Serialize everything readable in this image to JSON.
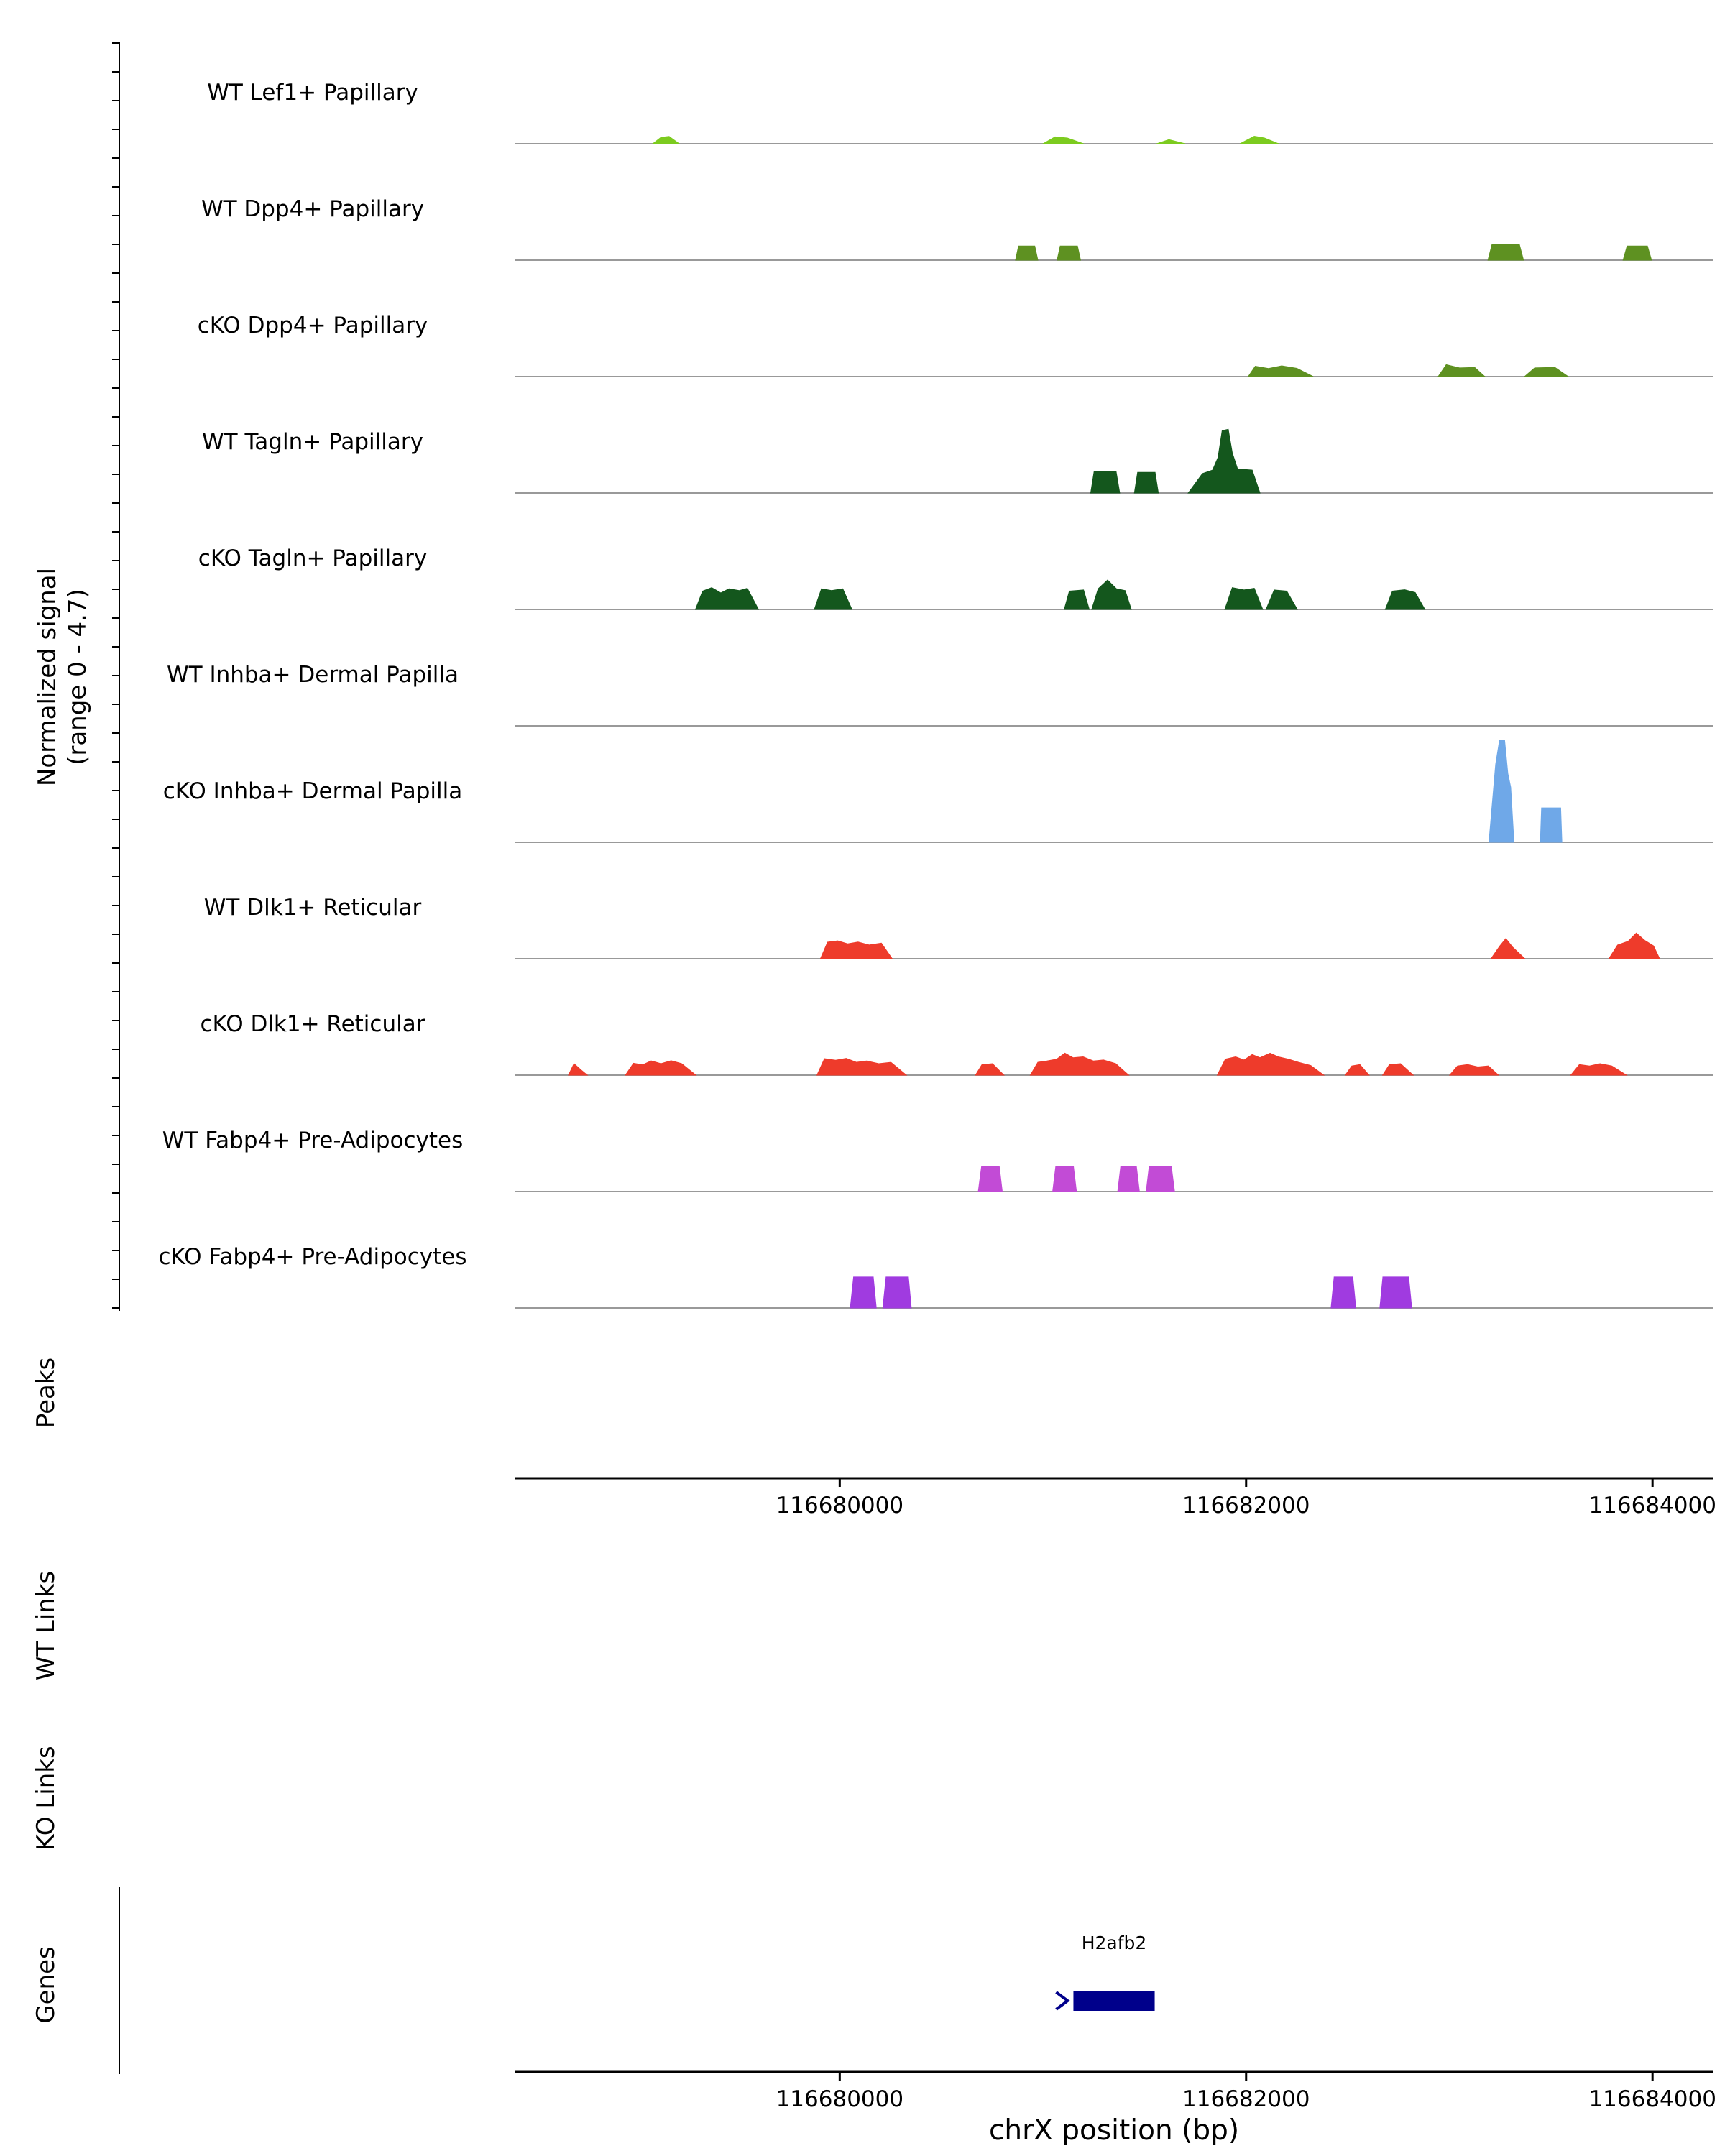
{
  "chart_data": {
    "type": "area",
    "description": "Genome browser coverage tracks (normalized ATAC signal) around gene H2afb2 on chrX",
    "xlabel": "chrX position (bp)",
    "x_domain": [
      116678400,
      116684300
    ],
    "x_ticks": [
      116680000,
      116682000,
      116684000
    ],
    "x_tick_labels": [
      "116680000",
      "116682000",
      "116684000"
    ],
    "y_range": [
      0,
      4.7
    ],
    "signal_axis_label_line1": "Normalized signal",
    "signal_axis_label_line2": "(range 0 - 4.7)",
    "sections": {
      "peaks": "Peaks",
      "wt_links": "WT Links",
      "ko_links": "KO Links",
      "genes": "Genes"
    },
    "grid": "off",
    "legend": "none",
    "tracks": [
      {
        "label": "WT Lef1+ Papillary",
        "color": "#7CCB1F",
        "segments": [
          [
            [
              116679080,
              0
            ],
            [
              116679120,
              0.28
            ],
            [
              116679160,
              0.32
            ],
            [
              116679210,
              0
            ]
          ],
          [
            [
              116681000,
              0
            ],
            [
              116681060,
              0.3
            ],
            [
              116681120,
              0.25
            ],
            [
              116681200,
              0
            ]
          ],
          [
            [
              116681560,
              0
            ],
            [
              116681620,
              0.18
            ],
            [
              116681700,
              0
            ]
          ],
          [
            [
              116681970,
              0
            ],
            [
              116682040,
              0.33
            ],
            [
              116682090,
              0.25
            ],
            [
              116682160,
              0
            ]
          ]
        ]
      },
      {
        "label": "WT Dpp4+ Papillary",
        "color": "#5E9121",
        "segments": [
          [
            [
              116680865,
              0
            ],
            [
              116680880,
              0.62
            ],
            [
              116680960,
              0.62
            ],
            [
              116680975,
              0
            ]
          ],
          [
            [
              116681070,
              0
            ],
            [
              116681085,
              0.62
            ],
            [
              116681170,
              0.62
            ],
            [
              116681185,
              0
            ]
          ],
          [
            [
              116683190,
              0
            ],
            [
              116683210,
              0.68
            ],
            [
              116683345,
              0.68
            ],
            [
              116683365,
              0
            ]
          ],
          [
            [
              116683855,
              0
            ],
            [
              116683875,
              0.62
            ],
            [
              116683975,
              0.62
            ],
            [
              116683995,
              0
            ]
          ]
        ]
      },
      {
        "label": "cKO Dpp4+ Papillary",
        "color": "#5E9121",
        "segments": [
          [
            [
              116682010,
              0
            ],
            [
              116682045,
              0.45
            ],
            [
              116682110,
              0.35
            ],
            [
              116682175,
              0.47
            ],
            [
              116682250,
              0.36
            ],
            [
              116682330,
              0
            ]
          ],
          [
            [
              116682945,
              0
            ],
            [
              116682985,
              0.52
            ],
            [
              116683050,
              0.38
            ],
            [
              116683125,
              0.4
            ],
            [
              116683175,
              0
            ]
          ],
          [
            [
              116683370,
              0
            ],
            [
              116683420,
              0.38
            ],
            [
              116683520,
              0.4
            ],
            [
              116683585,
              0
            ]
          ]
        ]
      },
      {
        "label": "WT Tagln+ Papillary",
        "color": "#14571D",
        "segments": [
          [
            [
              116681235,
              0
            ],
            [
              116681252,
              0.95
            ],
            [
              116681360,
              0.95
            ],
            [
              116681378,
              0
            ]
          ],
          [
            [
              116681450,
              0
            ],
            [
              116681466,
              0.9
            ],
            [
              116681552,
              0.9
            ],
            [
              116681568,
              0
            ]
          ],
          [
            [
              116681715,
              0
            ],
            [
              116681785,
              0.85
            ],
            [
              116681835,
              1.0
            ],
            [
              116681862,
              1.55
            ],
            [
              116681882,
              2.72
            ],
            [
              116681912,
              2.78
            ],
            [
              116681932,
              1.75
            ],
            [
              116681958,
              1.05
            ],
            [
              116682030,
              1.0
            ],
            [
              116682068,
              0
            ]
          ]
        ]
      },
      {
        "label": "cKO Tagln+ Papillary",
        "color": "#14571D",
        "segments": [
          [
            [
              116679290,
              0
            ],
            [
              116679325,
              0.8
            ],
            [
              116679370,
              0.95
            ],
            [
              116679415,
              0.72
            ],
            [
              116679455,
              0.9
            ],
            [
              116679505,
              0.82
            ],
            [
              116679545,
              0.92
            ],
            [
              116679600,
              0
            ]
          ],
          [
            [
              116679875,
              0
            ],
            [
              116679910,
              0.9
            ],
            [
              116679960,
              0.82
            ],
            [
              116680015,
              0.9
            ],
            [
              116680060,
              0
            ]
          ],
          [
            [
              116681105,
              0
            ],
            [
              116681130,
              0.8
            ],
            [
              116681200,
              0.85
            ],
            [
              116681228,
              0
            ]
          ],
          [
            [
              116681240,
              0
            ],
            [
              116681272,
              0.9
            ],
            [
              116681318,
              1.28
            ],
            [
              116681362,
              0.9
            ],
            [
              116681405,
              0.82
            ],
            [
              116681435,
              0
            ]
          ],
          [
            [
              116681895,
              0
            ],
            [
              116681932,
              0.95
            ],
            [
              116681990,
              0.85
            ],
            [
              116682040,
              0.92
            ],
            [
              116682082,
              0
            ]
          ],
          [
            [
              116682098,
              0
            ],
            [
              116682138,
              0.85
            ],
            [
              116682200,
              0.8
            ],
            [
              116682252,
              0
            ]
          ],
          [
            [
              116682685,
              0
            ],
            [
              116682720,
              0.8
            ],
            [
              116682780,
              0.86
            ],
            [
              116682832,
              0.74
            ],
            [
              116682880,
              0
            ]
          ]
        ]
      },
      {
        "label": "WT Inhba+ Dermal Papilla",
        "color": "#6FA8E8",
        "segments": []
      },
      {
        "label": "cKO Inhba+ Dermal Papilla",
        "color": "#6FA8E8",
        "segments": [
          [
            [
              116683195,
              0
            ],
            [
              116683228,
              3.4
            ],
            [
              116683247,
              4.45
            ],
            [
              116683272,
              4.45
            ],
            [
              116683288,
              3.0
            ],
            [
              116683302,
              2.4
            ],
            [
              116683318,
              0
            ]
          ],
          [
            [
              116683448,
              0
            ],
            [
              116683454,
              1.5
            ],
            [
              116683548,
              1.5
            ],
            [
              116683554,
              0
            ]
          ]
        ]
      },
      {
        "label": "WT Dlk1+ Reticular",
        "color": "#EE3B2B",
        "segments": [
          [
            [
              116679905,
              0
            ],
            [
              116679940,
              0.72
            ],
            [
              116679990,
              0.78
            ],
            [
              116680040,
              0.65
            ],
            [
              116680090,
              0.73
            ],
            [
              116680145,
              0.6
            ],
            [
              116680205,
              0.68
            ],
            [
              116680258,
              0
            ]
          ],
          [
            [
              116683205,
              0
            ],
            [
              116683248,
              0.55
            ],
            [
              116683278,
              0.88
            ],
            [
              116683312,
              0.5
            ],
            [
              116683372,
              0
            ]
          ],
          [
            [
              116683785,
              0
            ],
            [
              116683828,
              0.6
            ],
            [
              116683880,
              0.76
            ],
            [
              116683920,
              1.12
            ],
            [
              116683962,
              0.8
            ],
            [
              116684005,
              0.56
            ],
            [
              116684035,
              0
            ]
          ]
        ]
      },
      {
        "label": "cKO Dlk1+ Reticular",
        "color": "#EE3B2B",
        "segments": [
          [
            [
              116678665,
              0
            ],
            [
              116678692,
              0.5
            ],
            [
              116678728,
              0.22
            ],
            [
              116678758,
              0
            ]
          ],
          [
            [
              116678945,
              0
            ],
            [
              116678985,
              0.52
            ],
            [
              116679030,
              0.45
            ],
            [
              116679072,
              0.62
            ],
            [
              116679120,
              0.5
            ],
            [
              116679170,
              0.63
            ],
            [
              116679222,
              0.5
            ],
            [
              116679292,
              0
            ]
          ],
          [
            [
              116679888,
              0
            ],
            [
              116679925,
              0.72
            ],
            [
              116679980,
              0.65
            ],
            [
              116680032,
              0.73
            ],
            [
              116680082,
              0.56
            ],
            [
              116680132,
              0.62
            ],
            [
              116680192,
              0.5
            ],
            [
              116680252,
              0.56
            ],
            [
              116680328,
              0
            ]
          ],
          [
            [
              116680668,
              0
            ],
            [
              116680700,
              0.46
            ],
            [
              116680752,
              0.5
            ],
            [
              116680808,
              0
            ]
          ],
          [
            [
              116680938,
              0
            ],
            [
              116680975,
              0.56
            ],
            [
              116681020,
              0.62
            ],
            [
              116681068,
              0.7
            ],
            [
              116681108,
              0.96
            ],
            [
              116681148,
              0.76
            ],
            [
              116681198,
              0.8
            ],
            [
              116681248,
              0.62
            ],
            [
              116681298,
              0.66
            ],
            [
              116681358,
              0.5
            ],
            [
              116681422,
              0
            ]
          ],
          [
            [
              116681858,
              0
            ],
            [
              116681898,
              0.7
            ],
            [
              116681948,
              0.8
            ],
            [
              116681990,
              0.66
            ],
            [
              116682030,
              0.9
            ],
            [
              116682068,
              0.76
            ],
            [
              116682118,
              0.96
            ],
            [
              116682158,
              0.8
            ],
            [
              116682208,
              0.7
            ],
            [
              116682258,
              0.56
            ],
            [
              116682318,
              0.42
            ],
            [
              116682382,
              0
            ]
          ],
          [
            [
              116682488,
              0
            ],
            [
              116682520,
              0.4
            ],
            [
              116682560,
              0.46
            ],
            [
              116682605,
              0
            ]
          ],
          [
            [
              116682672,
              0
            ],
            [
              116682705,
              0.46
            ],
            [
              116682760,
              0.5
            ],
            [
              116682822,
              0
            ]
          ],
          [
            [
              116683002,
              0
            ],
            [
              116683040,
              0.4
            ],
            [
              116683090,
              0.46
            ],
            [
              116683140,
              0.36
            ],
            [
              116683192,
              0.4
            ],
            [
              116683242,
              0
            ]
          ],
          [
            [
              116683598,
              0
            ],
            [
              116683640,
              0.46
            ],
            [
              116683690,
              0.4
            ],
            [
              116683742,
              0.5
            ],
            [
              116683800,
              0.4
            ],
            [
              116683872,
              0
            ]
          ]
        ]
      },
      {
        "label": "WT Fabp4+ Pre-Adipocytes",
        "color": "#C24BD6",
        "segments": [
          [
            [
              116680682,
              0
            ],
            [
              116680698,
              1.1
            ],
            [
              116680785,
              1.1
            ],
            [
              116680800,
              0
            ]
          ],
          [
            [
              116681048,
              0
            ],
            [
              116681063,
              1.1
            ],
            [
              116681150,
              1.1
            ],
            [
              116681165,
              0
            ]
          ],
          [
            [
              116681368,
              0
            ],
            [
              116681383,
              1.1
            ],
            [
              116681460,
              1.1
            ],
            [
              116681475,
              0
            ]
          ],
          [
            [
              116681508,
              0
            ],
            [
              116681523,
              1.1
            ],
            [
              116681632,
              1.1
            ],
            [
              116681648,
              0
            ]
          ]
        ]
      },
      {
        "label": "cKO Fabp4+ Pre-Adipocytes",
        "color": "#A03BE0",
        "segments": [
          [
            [
              116680052,
              0
            ],
            [
              116680068,
              1.35
            ],
            [
              116680165,
              1.35
            ],
            [
              116680180,
              0
            ]
          ],
          [
            [
              116680212,
              0
            ],
            [
              116680228,
              1.35
            ],
            [
              116680338,
              1.35
            ],
            [
              116680352,
              0
            ]
          ],
          [
            [
              116682418,
              0
            ],
            [
              116682433,
              1.35
            ],
            [
              116682525,
              1.35
            ],
            [
              116682540,
              0
            ]
          ],
          [
            [
              116682658,
              0
            ],
            [
              116682673,
              1.35
            ],
            [
              116682800,
              1.35
            ],
            [
              116682815,
              0
            ]
          ]
        ]
      }
    ],
    "genes": [
      {
        "name": "H2afb2",
        "start": 116681150,
        "end": 116681550,
        "strand": "+",
        "color": "#00008B"
      }
    ],
    "colors": {
      "baseline": "#999999",
      "axis": "#000000",
      "tick_label": "#1a1a1a"
    }
  }
}
